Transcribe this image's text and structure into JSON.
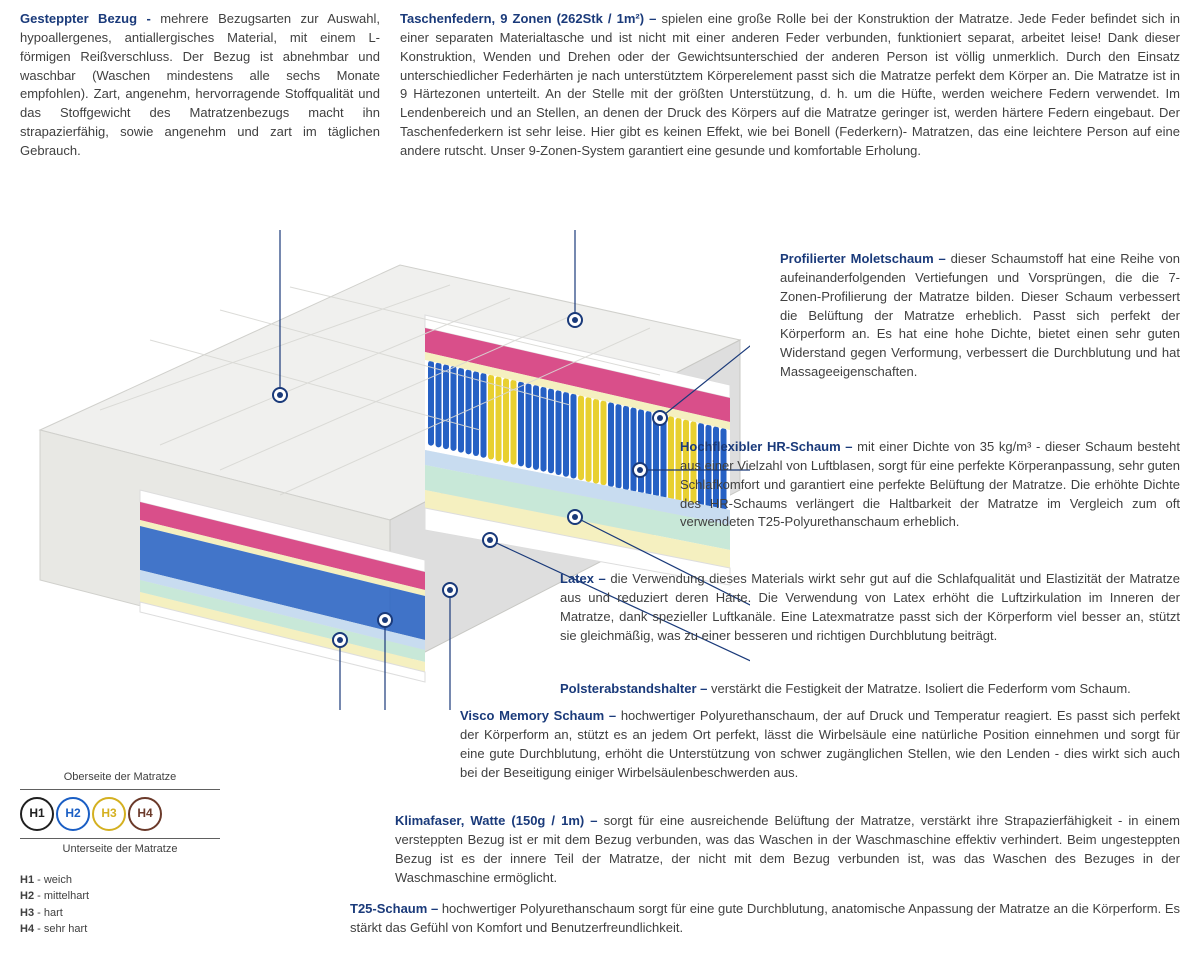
{
  "colors": {
    "title": "#1a3a7a",
    "text": "#404040",
    "cover": "#f0f0ee",
    "pink": "#d94f8a",
    "blue_spring": "#2560c4",
    "yellow_spring": "#e8d030",
    "mint": "#c8e8d8",
    "pale_yellow": "#f5f0c0",
    "pale_blue": "#c8dcf0",
    "h1": "#202020",
    "h2": "#1a5ec4",
    "h3": "#d4b020",
    "h4": "#6b3a2a"
  },
  "top_left": {
    "title": "Gesteppter Bezug - ",
    "body": "mehrere Bezugsarten zur Auswahl, hypoallergenes, antiallergisches Material, mit einem L-förmigen Reißverschluss. Der Bezug ist abnehmbar und waschbar (Waschen mindestens alle sechs Monate empfohlen). Zart, angenehm, hervorragende Stoffqualität und das Stoffgewicht des Matratzenbezugs macht ihn strapazierfähig, sowie angenehm und zart im täglichen Gebrauch."
  },
  "top_right": {
    "title": "Taschenfedern, 9 Zonen (262Stk / 1m²) – ",
    "body": " spielen eine große Rolle bei der Konstruktion der Matratze. Jede Feder befindet sich in einer separaten Materialtasche und ist nicht mit einer anderen Feder verbunden, funktioniert separat, arbeitet leise! Dank dieser Konstruktion, Wenden und Drehen oder der Gewichtsunterschied der anderen Person ist völlig unmerklich. Durch den Einsatz unterschiedlicher Federhärten je nach unterstütztem Körperelement passt sich die Matratze perfekt dem Körper an. Die Matratze ist in 9 Härtezonen unterteilt. An der Stelle mit der größten Unterstützung, d. h. um die Hüfte, werden weichere Federn verwendet. Im Lendenbereich und an Stellen, an denen der Druck des Körpers auf die Matratze geringer ist, werden härtere Federn eingebaut. Der Taschenfederkern ist sehr leise. Hier gibt es keinen Effekt, wie bei Bonell (Federkern)- Matratzen, das eine leichtere Person auf eine andere rutscht. Unser 9-Zonen-System garantiert eine gesunde und komfortable Erholung."
  },
  "sections": {
    "molet": {
      "title": "Profilierter Moletschaum – ",
      "body": " dieser Schaumstoff hat eine Reihe von aufeinanderfolgenden Vertiefungen und Vorsprüngen, die die 7-Zonen-Profilierung der Matratze bilden. Dieser Schaum verbessert die Belüftung der Matratze erheblich. Passt sich perfekt der Körperform an. Es hat eine hohe Dichte, bietet einen sehr guten Widerstand gegen Verformung, verbessert die Durchblutung und hat Massageeigenschaften."
    },
    "hr": {
      "title": "Hochflexibler HR-Schaum – ",
      "body": " mit einer Dichte von 35 kg/m³ - dieser Schaum besteht aus einer Vielzahl von Luftblasen, sorgt für eine perfekte Körperanpassung, sehr guten Schlafkomfort und garantiert eine perfekte Belüftung der Matratze. Die erhöhte Dichte des HR-Schaums verlängert die Haltbarkeit der Matratze im Vergleich zum oft verwendeten T25-Polyurethanschaum erheblich."
    },
    "latex": {
      "title": "Latex – ",
      "body": " die Verwendung dieses Materials wirkt sehr gut auf die Schlafqualität und Elastizität der Matratze aus und reduziert deren Härte. Die Verwendung von Latex erhöht die Luftzirkulation im Inneren der Matratze, dank spezieller Luftkanäle. Eine Latexmatratze passt sich der Körperform viel besser an, stützt sie gleichmäßig, was zu einer besseren und richtigen Durchblutung beiträgt."
    },
    "polster": {
      "title": "Polsterabstandshalter – ",
      "body": "verstärkt die Festigkeit der Matratze. Isoliert die Federform vom Schaum."
    },
    "visco": {
      "title": "Visco Memory Schaum – ",
      "body": " hochwertiger Polyurethanschaum, der auf Druck und Temperatur reagiert. Es passt sich perfekt der Körperform an, stützt es an jedem Ort perfekt, lässt die Wirbelsäule eine natürliche Position einnehmen und sorgt für eine gute Durchblutung, erhöht die Unterstützung von schwer zugänglichen Stellen, wie den Lenden - dies wirkt sich auch bei der Beseitigung einiger Wirbelsäulenbeschwerden aus."
    },
    "klima": {
      "title": "Klimafaser, Watte (150g / 1m) – ",
      "body": " sorgt für eine ausreichende Belüftung der Matratze, verstärkt ihre Strapazierfähigkeit - in einem versteppten Bezug ist er mit dem Bezug verbunden, was das Waschen in der Waschmaschine effektiv verhindert. Beim ungesteppten Bezug ist es der innere Teil der Matratze, der nicht mit dem Bezug verbunden ist, was das Waschen des Bezuges in der Waschmaschine ermöglicht."
    },
    "t25": {
      "title": "T25-Schaum – ",
      "body": " hochwertiger Polyurethanschaum sorgt für eine gute Durchblutung, anatomische Anpassung der Matratze an die Körperform. Es stärkt das Gefühl von Komfort und Benutzerfreundlichkeit."
    }
  },
  "hardness": {
    "top_label": "Oberseite der Matratze",
    "bottom_label": "Unterseite der Matratze",
    "items": [
      {
        "label": "H1",
        "color": "#202020"
      },
      {
        "label": "H2",
        "color": "#1a5ec4"
      },
      {
        "label": "H3",
        "color": "#d4b020"
      },
      {
        "label": "H4",
        "color": "#6b3a2a"
      }
    ],
    "legend": [
      {
        "k": "H1",
        "v": "- weich"
      },
      {
        "k": "H2",
        "v": "- mittelhart"
      },
      {
        "k": "H3",
        "v": "- hart"
      },
      {
        "k": "H4",
        "v": "- sehr hart"
      }
    ]
  }
}
